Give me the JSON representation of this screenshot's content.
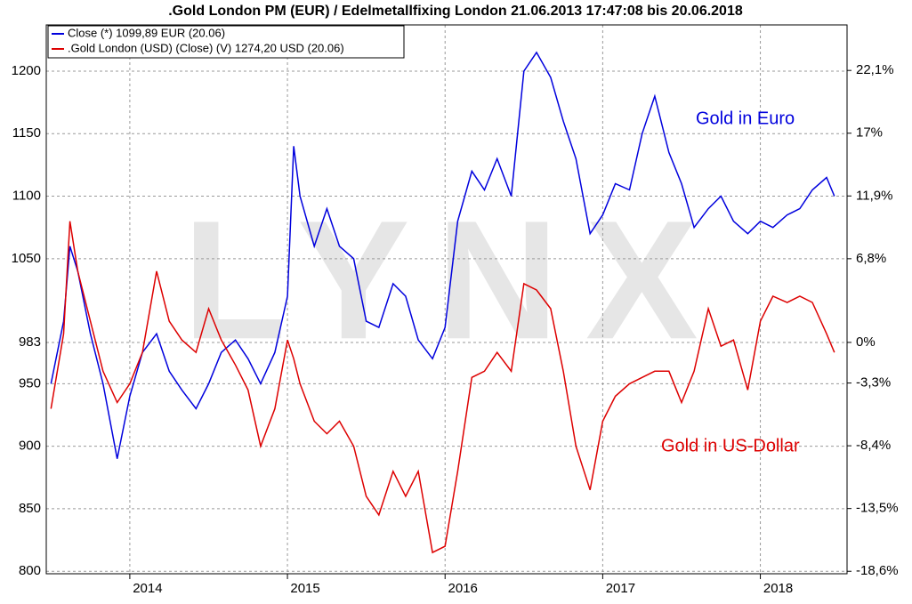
{
  "chart_data": {
    "type": "line",
    "title": ".Gold London PM (EUR) / Edelmetallfixing London 21.06.2013 17:47:08 bis 20.06.2018",
    "watermark": "LYNX",
    "annotations": [
      "Gold in Euro",
      "Gold in US-Dollar"
    ],
    "x": [
      2013.5,
      2013.58,
      2013.62,
      2013.67,
      2013.75,
      2013.83,
      2013.92,
      2014.0,
      2014.08,
      2014.17,
      2014.25,
      2014.33,
      2014.42,
      2014.5,
      2014.58,
      2014.67,
      2014.75,
      2014.83,
      2014.92,
      2015.0,
      2015.04,
      2015.08,
      2015.17,
      2015.25,
      2015.33,
      2015.42,
      2015.5,
      2015.58,
      2015.67,
      2015.75,
      2015.83,
      2015.92,
      2016.0,
      2016.08,
      2016.17,
      2016.25,
      2016.33,
      2016.42,
      2016.5,
      2016.58,
      2016.67,
      2016.75,
      2016.83,
      2016.92,
      2017.0,
      2017.08,
      2017.17,
      2017.25,
      2017.33,
      2017.42,
      2017.5,
      2017.58,
      2017.67,
      2017.75,
      2017.83,
      2017.92,
      2018.0,
      2018.08,
      2018.17,
      2018.25,
      2018.33,
      2018.42,
      2018.47
    ],
    "series": [
      {
        "name": "Close (*) 1099,89 EUR (20.06)",
        "color": "#0000dd",
        "values": [
          950,
          1000,
          1060,
          1040,
          990,
          950,
          890,
          940,
          975,
          990,
          960,
          945,
          930,
          950,
          975,
          985,
          970,
          950,
          975,
          1020,
          1140,
          1100,
          1060,
          1090,
          1060,
          1050,
          1000,
          995,
          1030,
          1020,
          985,
          970,
          995,
          1080,
          1120,
          1105,
          1130,
          1100,
          1200,
          1215,
          1195,
          1160,
          1130,
          1070,
          1085,
          1110,
          1105,
          1150,
          1180,
          1135,
          1110,
          1075,
          1090,
          1100,
          1080,
          1070,
          1080,
          1075,
          1085,
          1090,
          1105,
          1115,
          1100
        ]
      },
      {
        "name": ".Gold London (USD) (Close) (V) 1274,20 USD (20.06)",
        "color": "#dd0000",
        "values": [
          930,
          990,
          1080,
          1040,
          1000,
          960,
          935,
          950,
          975,
          1040,
          1000,
          985,
          975,
          1010,
          985,
          965,
          945,
          900,
          930,
          985,
          970,
          950,
          920,
          910,
          920,
          900,
          860,
          845,
          880,
          860,
          880,
          815,
          820,
          880,
          955,
          960,
          975,
          960,
          1030,
          1025,
          1010,
          960,
          900,
          865,
          920,
          940,
          950,
          955,
          960,
          960,
          935,
          960,
          1010,
          980,
          985,
          945,
          1000,
          1020,
          1015,
          1020,
          1015,
          990,
          975
        ]
      }
    ],
    "xlim": [
      2013.47,
      2018.55
    ],
    "xticks": [
      2014,
      2015,
      2016,
      2017,
      2018
    ],
    "ylim": [
      798,
      1237
    ],
    "yticks": [
      800,
      850,
      900,
      950,
      983,
      1050,
      1100,
      1150,
      1200
    ],
    "y2lim": [
      -18.8,
      25.8
    ],
    "y2ticks": [
      {
        "value": 22.1,
        "label": "22,1%"
      },
      {
        "value": 17,
        "label": "17%"
      },
      {
        "value": 11.9,
        "label": "11,9%"
      },
      {
        "value": 6.8,
        "label": "6,8%"
      },
      {
        "value": 0,
        "label": "0%"
      },
      {
        "value": -3.3,
        "label": "-3,3%"
      },
      {
        "value": -8.4,
        "label": "-8,4%"
      },
      {
        "value": -13.5,
        "label": "-13,5%"
      },
      {
        "value": -18.6,
        "label": "-18,6%"
      }
    ],
    "grid": true
  }
}
